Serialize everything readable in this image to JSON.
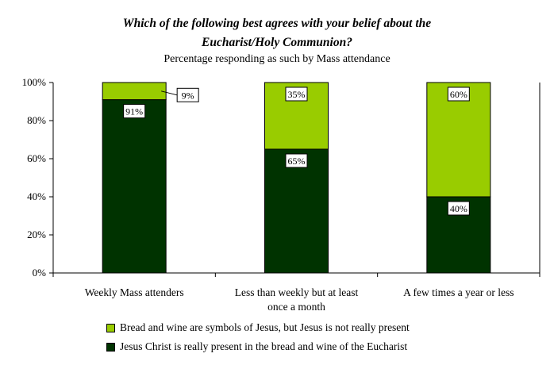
{
  "chart_data": {
    "type": "bar",
    "stacked": true,
    "title_line1": "Which of the following best agrees with your belief about the",
    "title_line2": "Eucharist/Holy Communion?",
    "subtitle": "Percentage responding as such by Mass attendance",
    "categories": [
      "Weekly Mass attenders",
      "Less than weekly but at least once a month",
      "A few times a year or less"
    ],
    "category_lines": [
      [
        "Weekly Mass attenders"
      ],
      [
        "Less than weekly but at least",
        "once a month"
      ],
      [
        "A few times a year or less"
      ]
    ],
    "series": [
      {
        "name": "Jesus Christ is really present in the bread and wine of the Eucharist",
        "values": [
          91,
          65,
          40
        ],
        "labels": [
          "91%",
          "65%",
          "40%"
        ],
        "color": "#003300"
      },
      {
        "name": "Bread and wine are symbols of Jesus, but Jesus is not really present",
        "values": [
          9,
          35,
          60
        ],
        "labels": [
          "9%",
          "35%",
          "60%"
        ],
        "color": "#99cc00"
      }
    ],
    "y_ticks": [
      "0%",
      "20%",
      "40%",
      "60%",
      "80%",
      "100%"
    ],
    "ylim": [
      0,
      100
    ],
    "grid": false,
    "legend_position": "bottom"
  }
}
